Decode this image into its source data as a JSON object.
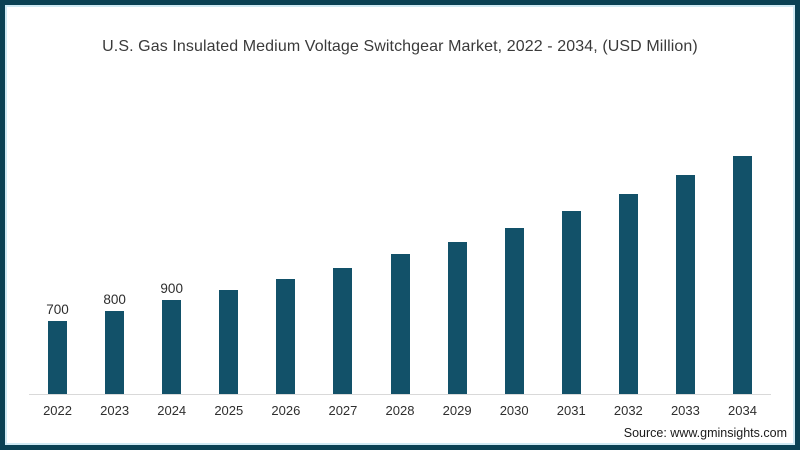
{
  "window": {
    "border_color": "#0a4154",
    "inner_line_color": "#cfeaf4",
    "background": "#ffffff"
  },
  "footer": {
    "source": "Source: www.gminsights.com"
  },
  "chart_data": {
    "type": "bar",
    "title": "U.S. Gas Insulated Medium Voltage Switchgear Market, 2022 - 2034, (USD Million)",
    "categories": [
      "2022",
      "2023",
      "2024",
      "2025",
      "2026",
      "2027",
      "2028",
      "2029",
      "2030",
      "2031",
      "2032",
      "2033",
      "2034"
    ],
    "values": [
      700,
      800,
      900,
      1000,
      1100,
      1210,
      1340,
      1460,
      1590,
      1760,
      1920,
      2100,
      2280
    ],
    "data_labels": [
      "700",
      "800",
      "900",
      "",
      "",
      "",
      "",
      "",
      "",
      "",
      "",
      "",
      ""
    ],
    "unit": "USD Million",
    "xlabel": "",
    "ylabel": "",
    "ylim": [
      0,
      2400
    ],
    "grid": false,
    "legend": false,
    "bar_color": "#125169",
    "axis_line_color": "#d9d9d9",
    "title_color": "#3a3a3a",
    "label_color": "#2d2d2d"
  }
}
